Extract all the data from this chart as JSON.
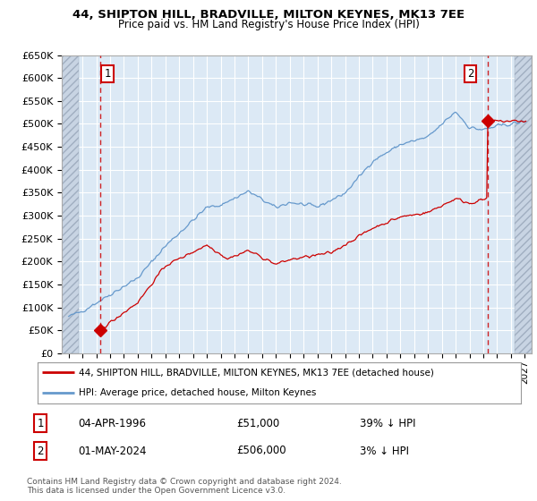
{
  "title": "44, SHIPTON HILL, BRADVILLE, MILTON KEYNES, MK13 7EE",
  "subtitle": "Price paid vs. HM Land Registry's House Price Index (HPI)",
  "ylim": [
    0,
    650000
  ],
  "yticks": [
    0,
    50000,
    100000,
    150000,
    200000,
    250000,
    300000,
    350000,
    400000,
    450000,
    500000,
    550000,
    600000,
    650000
  ],
  "ytick_labels": [
    "£0",
    "£50K",
    "£100K",
    "£150K",
    "£200K",
    "£250K",
    "£300K",
    "£350K",
    "£400K",
    "£450K",
    "£500K",
    "£550K",
    "£600K",
    "£650K"
  ],
  "xlim_start": 1993.5,
  "xlim_end": 2027.5,
  "plot_bg_color": "#dce9f5",
  "hatch_bg_color": "#c8d4e3",
  "grid_color": "#ffffff",
  "sale1_year": 1996.27,
  "sale1_price": 51000,
  "sale2_year": 2024.33,
  "sale2_price": 506000,
  "sale1_label": "1",
  "sale2_label": "2",
  "sale1_date": "04-APR-1996",
  "sale1_amount": "£51,000",
  "sale1_hpi": "39% ↓ HPI",
  "sale2_date": "01-MAY-2024",
  "sale2_amount": "£506,000",
  "sale2_hpi": "3% ↓ HPI",
  "line_color_red": "#cc0000",
  "line_color_blue": "#6699cc",
  "legend_line1": "44, SHIPTON HILL, BRADVILLE, MILTON KEYNES, MK13 7EE (detached house)",
  "legend_line2": "HPI: Average price, detached house, Milton Keynes",
  "footer": "Contains HM Land Registry data © Crown copyright and database right 2024.\nThis data is licensed under the Open Government Licence v3.0."
}
